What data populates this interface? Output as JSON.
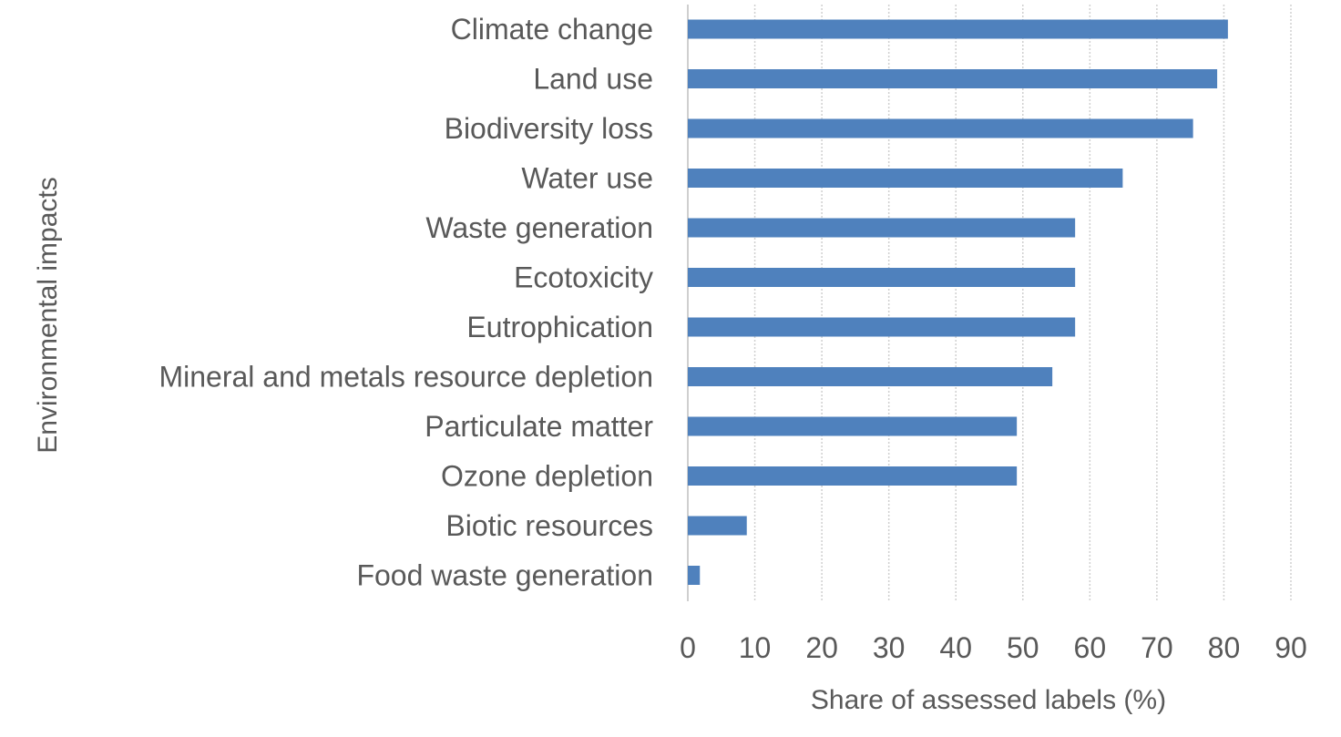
{
  "chart_data": {
    "type": "bar",
    "orientation": "horizontal",
    "categories": [
      "Climate change",
      "Land use",
      "Biodiversity loss",
      "Water use",
      "Waste generation",
      "Ecotoxicity",
      "Eutrophication",
      "Mineral and metals resource depletion",
      "Particulate matter",
      "Ozone depletion",
      "Biotic resources",
      "Food waste generation"
    ],
    "values": [
      80.6,
      79,
      75.4,
      64.9,
      57.8,
      57.8,
      57.8,
      54.4,
      49.1,
      49.1,
      8.8,
      1.8
    ],
    "title": "",
    "xlabel": "Share of assessed labels (%)",
    "ylabel": "Environmental impacts",
    "xlim": [
      0,
      90
    ],
    "xticks": [
      "0",
      "10",
      "20",
      "30",
      "40",
      "50",
      "60",
      "70",
      "80",
      "90"
    ],
    "grid": "vertical",
    "legend": "none",
    "bar_color": "#4f81bd"
  }
}
